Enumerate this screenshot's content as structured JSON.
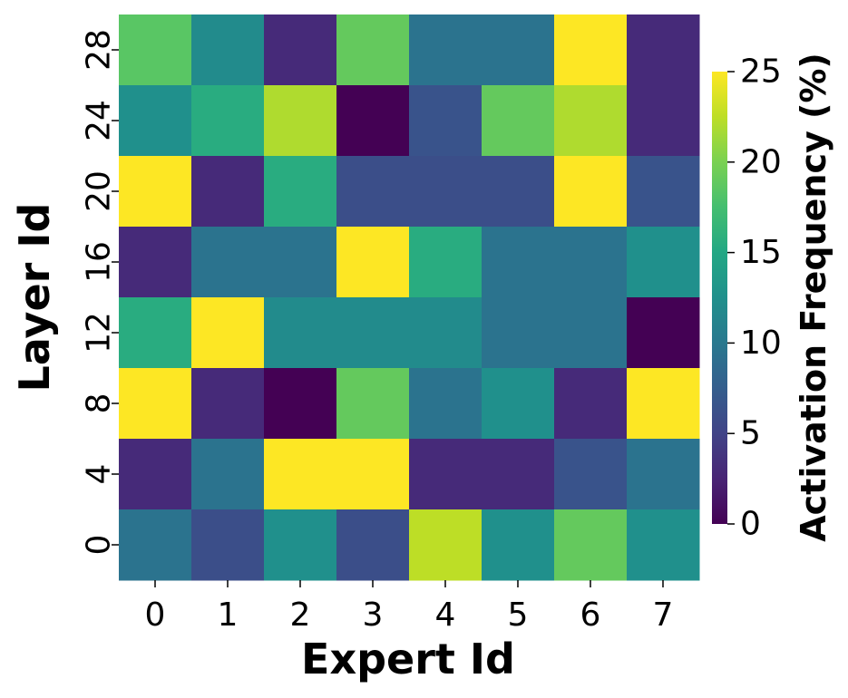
{
  "chart_data": {
    "type": "heatmap",
    "xlabel": "Expert Id",
    "ylabel": "Layer Id",
    "x_categories": [
      "0",
      "1",
      "2",
      "3",
      "4",
      "5",
      "6",
      "7"
    ],
    "y_categories": [
      "28",
      "24",
      "20",
      "16",
      "12",
      "8",
      "4",
      "0"
    ],
    "values": [
      [
        18.5,
        12.0,
        3.0,
        19.0,
        9.5,
        9.5,
        25.0,
        3.0
      ],
      [
        12.5,
        15.5,
        22.0,
        0.0,
        6.5,
        19.0,
        22.0,
        3.0
      ],
      [
        25.0,
        3.0,
        15.5,
        6.0,
        6.0,
        6.0,
        25.0,
        6.5
      ],
      [
        3.0,
        9.5,
        9.5,
        25.0,
        15.5,
        9.5,
        9.5,
        12.5
      ],
      [
        15.5,
        25.0,
        12.0,
        12.0,
        12.0,
        9.5,
        9.5,
        0.0
      ],
      [
        25.0,
        3.0,
        0.0,
        19.0,
        9.5,
        12.5,
        3.0,
        25.0
      ],
      [
        3.0,
        9.5,
        25.0,
        25.0,
        3.0,
        3.0,
        6.5,
        9.5
      ],
      [
        9.5,
        6.0,
        12.5,
        6.0,
        22.5,
        12.5,
        19.0,
        12.5
      ]
    ],
    "color_range": [
      0,
      25
    ],
    "colormap": "viridis",
    "colorbar": {
      "label": "Activation Frequency (%)",
      "ticks": [
        "0",
        "5",
        "10",
        "15",
        "20",
        "25"
      ]
    },
    "grid": false,
    "legend": "colorbar-right"
  }
}
